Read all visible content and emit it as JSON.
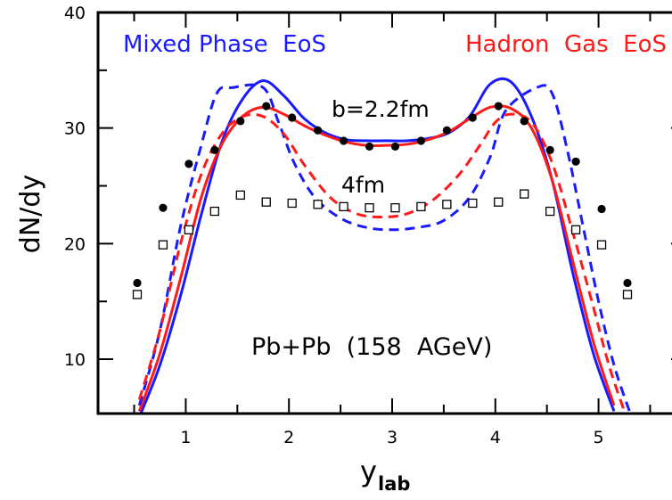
{
  "chart_data": {
    "type": "line",
    "xlabel": "y",
    "xlabel_subscript": "lab",
    "ylabel": "dN/dy",
    "xlim": [
      0.15,
      5.85
    ],
    "ylim": [
      5.3,
      40
    ],
    "x_ticks": [
      1,
      2,
      3,
      4,
      5
    ],
    "x_tick_labels": [
      "1",
      "2",
      "3",
      "4",
      "5"
    ],
    "x_minor_ticks": [
      0.5,
      1.5,
      2.5,
      3.5,
      4.5,
      5.5
    ],
    "y_ticks": [
      10,
      20,
      30,
      40
    ],
    "y_tick_labels": [
      "10",
      "20",
      "30",
      "40"
    ],
    "y_minor_ticks": [
      15,
      25,
      35
    ],
    "grid": false,
    "legend_left": {
      "text": "Mixed Phase  EoS",
      "color": "#1a1aff"
    },
    "legend_right": {
      "text": "Hadron  Gas  EoS",
      "color": "#ff1a1a"
    },
    "annotations": {
      "b_label": "b=2.2fm",
      "b4_label": "4fm",
      "system_label": "Pb+Pb  (158  AGeV)"
    },
    "series": [
      {
        "color": "#1a1aff",
        "dash": "solid",
        "x": [
          0.55,
          0.75,
          0.95,
          1.15,
          1.35,
          1.55,
          1.75,
          1.95,
          2.15,
          2.35,
          2.55,
          2.75,
          2.95,
          3.15,
          3.35,
          3.55,
          3.75,
          3.95,
          4.15,
          4.35,
          4.55,
          4.75,
          4.95,
          5.15
        ],
        "y": [
          5.0,
          9.5,
          15.5,
          22.5,
          28.8,
          32.5,
          34.1,
          32.8,
          30.8,
          29.6,
          29.0,
          28.9,
          28.9,
          28.9,
          29.1,
          29.6,
          31.0,
          33.8,
          34.0,
          31.0,
          25.5,
          17.5,
          10.5,
          5.5
        ]
      },
      {
        "color": "#ff1a1a",
        "dash": "solid",
        "x": [
          0.55,
          0.75,
          0.95,
          1.15,
          1.35,
          1.55,
          1.75,
          1.95,
          2.15,
          2.35,
          2.55,
          2.75,
          2.95,
          3.15,
          3.35,
          3.55,
          3.75,
          3.95,
          4.15,
          4.35,
          4.55,
          4.75,
          4.95,
          5.15
        ],
        "y": [
          5.5,
          10.5,
          17.0,
          24.0,
          28.6,
          31.0,
          31.8,
          31.2,
          30.2,
          29.4,
          28.8,
          28.5,
          28.5,
          28.6,
          29.0,
          29.7,
          30.8,
          31.8,
          31.7,
          30.0,
          25.5,
          18.5,
          11.5,
          6.0
        ]
      },
      {
        "color": "#1a1aff",
        "dash": "dashed",
        "x": [
          0.55,
          0.75,
          0.95,
          1.15,
          1.3,
          1.45,
          1.75,
          1.9,
          2.05,
          2.25,
          2.5,
          2.75,
          3.0,
          3.25,
          3.5,
          3.75,
          3.95,
          4.1,
          4.4,
          4.55,
          4.7,
          4.85,
          5.0,
          5.15,
          5.3
        ],
        "y": [
          6.0,
          12.5,
          21.5,
          28.5,
          33.0,
          33.5,
          33.5,
          30.5,
          27.0,
          24.0,
          22.2,
          21.4,
          21.2,
          21.4,
          22.0,
          24.0,
          27.5,
          31.5,
          33.5,
          33.0,
          28.0,
          21.5,
          15.0,
          9.5,
          5.5
        ]
      },
      {
        "color": "#ff1a1a",
        "dash": "dashed",
        "x": [
          0.55,
          0.75,
          0.95,
          1.15,
          1.35,
          1.55,
          1.75,
          1.95,
          2.15,
          2.4,
          2.65,
          2.9,
          3.15,
          3.4,
          3.65,
          3.85,
          4.0,
          4.15,
          4.35,
          4.55,
          4.75,
          4.95,
          5.1,
          5.25
        ],
        "y": [
          6.5,
          12.5,
          20.0,
          26.0,
          29.5,
          31.0,
          31.0,
          29.5,
          26.8,
          24.0,
          22.6,
          22.3,
          22.6,
          23.8,
          26.0,
          28.5,
          30.5,
          31.2,
          30.5,
          27.0,
          21.0,
          14.5,
          9.5,
          5.5
        ]
      }
    ],
    "points_b22_filled": {
      "x": [
        0.53,
        0.78,
        1.03,
        1.28,
        1.53,
        1.78,
        2.03,
        2.28,
        2.53,
        2.78,
        3.03,
        3.28,
        3.53,
        3.78,
        4.03,
        4.28,
        4.53,
        4.78,
        5.03,
        5.28
      ],
      "y": [
        16.6,
        23.1,
        26.9,
        28.1,
        30.6,
        31.9,
        30.9,
        29.8,
        28.9,
        28.4,
        28.4,
        28.9,
        29.8,
        30.9,
        31.9,
        30.6,
        28.1,
        27.1,
        23.0,
        16.6
      ]
    },
    "points_b4_open": {
      "x": [
        0.53,
        0.78,
        1.03,
        1.28,
        1.53,
        1.78,
        2.03,
        2.28,
        2.53,
        2.78,
        3.03,
        3.28,
        3.53,
        3.78,
        4.03,
        4.28,
        4.53,
        4.78,
        5.03,
        5.28
      ],
      "y": [
        15.6,
        19.9,
        21.2,
        22.8,
        24.2,
        23.6,
        23.5,
        23.4,
        23.2,
        23.1,
        23.1,
        23.2,
        23.4,
        23.5,
        23.6,
        24.3,
        22.8,
        21.2,
        19.9,
        15.6
      ]
    }
  }
}
